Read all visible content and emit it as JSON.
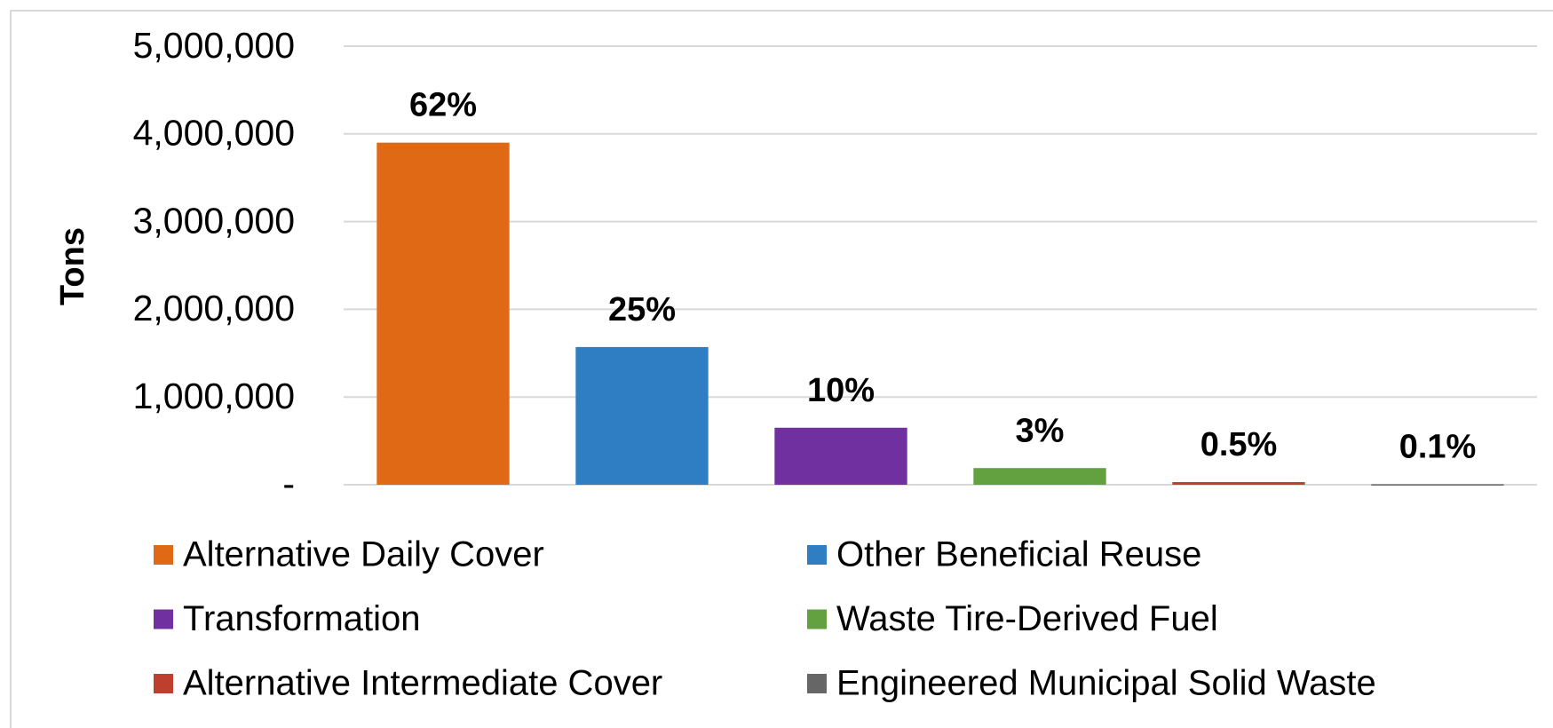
{
  "chart_data": {
    "type": "bar",
    "y_label": "Tons",
    "categories": [
      "Alternative Daily Cover",
      "Other Beneficial Reuse",
      "Transformation",
      "Waste Tire-Derived Fuel",
      "Alternative Intermediate Cover",
      "Engineered Municipal Solid Waste"
    ],
    "values": [
      3900000,
      1570000,
      650000,
      190000,
      30000,
      6000
    ],
    "share_labels": [
      "62%",
      "25%",
      "10%",
      "3%",
      "0.5%",
      "0.1%"
    ],
    "colors": [
      "#e06915",
      "#2f7ec4",
      "#7030a0",
      "#62a040",
      "#bf3f2f",
      "#666666"
    ],
    "ylim": [
      0,
      5000000
    ],
    "yticks": [
      {
        "value": 0,
        "label": "-"
      },
      {
        "value": 1000000,
        "label": "1,000,000"
      },
      {
        "value": 2000000,
        "label": "2,000,000"
      },
      {
        "value": 3000000,
        "label": "3,000,000"
      },
      {
        "value": 4000000,
        "label": "4,000,000"
      },
      {
        "value": 5000000,
        "label": "5,000,000"
      }
    ],
    "grid": true,
    "legend": "bottom"
  }
}
